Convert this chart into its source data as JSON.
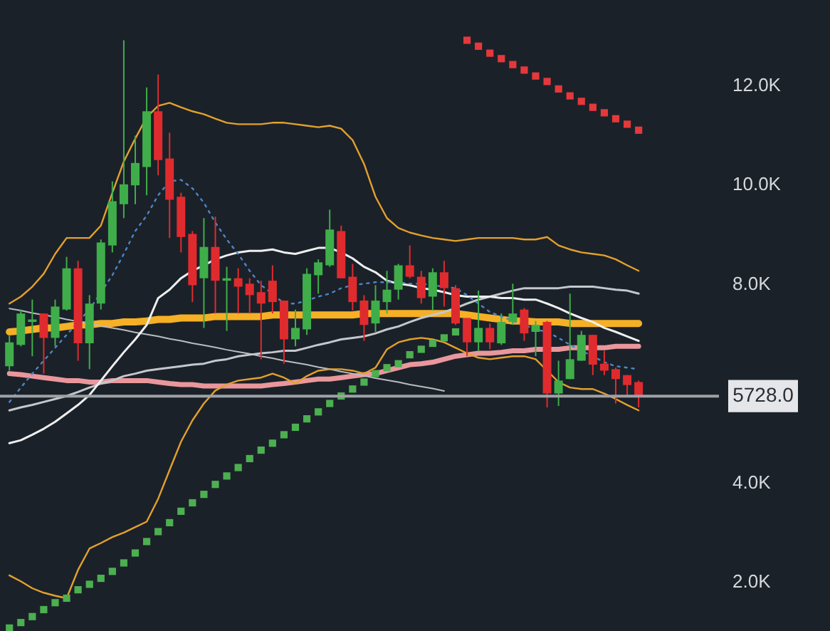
{
  "chart_data": {
    "type": "candlestick",
    "categories": [
      null,
      null,
      null,
      null,
      null,
      null,
      null,
      null,
      null,
      null,
      null,
      null,
      null,
      null,
      null,
      null,
      null,
      null,
      null,
      null,
      null,
      null,
      null,
      null,
      null,
      null,
      null,
      null,
      null,
      null,
      null,
      null,
      null,
      null,
      null,
      null,
      null,
      null,
      null,
      null,
      null,
      null,
      null,
      null,
      null,
      null,
      null,
      null,
      null,
      null,
      null,
      null,
      null,
      null,
      null,
      null
    ],
    "ohlc": [
      [
        6330,
        6960,
        6240,
        6810
      ],
      [
        6760,
        7470,
        6730,
        7390
      ],
      [
        7220,
        7670,
        6530,
        7270
      ],
      [
        7390,
        7390,
        6180,
        6900
      ],
      [
        6900,
        7670,
        6730,
        7530
      ],
      [
        7470,
        8530,
        7450,
        8300
      ],
      [
        8300,
        8450,
        6440,
        6790
      ],
      [
        6790,
        7760,
        6270,
        7590
      ],
      [
        7590,
        8880,
        7470,
        8820
      ],
      [
        8760,
        10050,
        8620,
        9650
      ],
      [
        9590,
        12890,
        9310,
        9990
      ],
      [
        9970,
        10970,
        9590,
        10420
      ],
      [
        10340,
        11940,
        9770,
        11460
      ],
      [
        11460,
        12200,
        10170,
        10480
      ],
      [
        10510,
        11030,
        8910,
        9680
      ],
      [
        9740,
        9820,
        8620,
        8930
      ],
      [
        8990,
        9050,
        7620,
        7960
      ],
      [
        8100,
        9310,
        7100,
        8730
      ],
      [
        8730,
        9340,
        7390,
        8050
      ],
      [
        8050,
        8330,
        7040,
        8100
      ],
      [
        8100,
        8300,
        7390,
        7930
      ],
      [
        7990,
        8100,
        7390,
        7760
      ],
      [
        7820,
        8050,
        6470,
        7590
      ],
      [
        8050,
        8360,
        7390,
        7620
      ],
      [
        7650,
        7650,
        6380,
        6870
      ],
      [
        6870,
        7470,
        6730,
        7100
      ],
      [
        7070,
        8300,
        6960,
        8190
      ],
      [
        8160,
        8480,
        7790,
        8420
      ],
      [
        8360,
        9480,
        8330,
        9080
      ],
      [
        9050,
        9160,
        8100,
        8100
      ],
      [
        8130,
        8390,
        7450,
        7620
      ],
      [
        7650,
        7760,
        6840,
        7160
      ],
      [
        7190,
        7960,
        7020,
        7650
      ],
      [
        7620,
        8250,
        7390,
        7870
      ],
      [
        7870,
        8390,
        7670,
        8360
      ],
      [
        8360,
        8760,
        8100,
        8130
      ],
      [
        8130,
        8250,
        7590,
        7700
      ],
      [
        7730,
        8300,
        7450,
        8220
      ],
      [
        8220,
        8450,
        7530,
        7900
      ],
      [
        7900,
        7960,
        7160,
        7190
      ],
      [
        7300,
        7300,
        6530,
        6810
      ],
      [
        6810,
        7850,
        6640,
        7100
      ],
      [
        7100,
        7190,
        6670,
        6810
      ],
      [
        6790,
        7390,
        6760,
        7220
      ],
      [
        7220,
        7990,
        7160,
        7390
      ],
      [
        7470,
        7500,
        6840,
        6990
      ],
      [
        7020,
        7240,
        6530,
        7160
      ],
      [
        7220,
        7240,
        5500,
        5780
      ],
      [
        5780,
        6440,
        5530,
        6040
      ],
      [
        6070,
        7790,
        6070,
        6470
      ],
      [
        6440,
        7040,
        6440,
        6960
      ],
      [
        6960,
        6960,
        6150,
        6360
      ],
      [
        6380,
        6640,
        6150,
        6240
      ],
      [
        6270,
        6300,
        5580,
        6070
      ],
      [
        6150,
        6150,
        5750,
        5950
      ],
      [
        6010,
        6040,
        5500,
        5728
      ]
    ],
    "colors": [
      "#3fae4a",
      "#3fae4a",
      "#3fae4a",
      "#e02b2e",
      "#3fae4a",
      "#3fae4a",
      "#e02b2e",
      "#3fae4a",
      "#3fae4a",
      "#3fae4a",
      "#3fae4a",
      "#3fae4a",
      "#3fae4a",
      "#e02b2e",
      "#e02b2e",
      "#e02b2e",
      "#e02b2e",
      "#3fae4a",
      "#e02b2e",
      "#3fae4a",
      "#e02b2e",
      "#e02b2e",
      "#e02b2e",
      "#e02b2e",
      "#e02b2e",
      "#3fae4a",
      "#3fae4a",
      "#3fae4a",
      "#3fae4a",
      "#e02b2e",
      "#e02b2e",
      "#e02b2e",
      "#3fae4a",
      "#3fae4a",
      "#3fae4a",
      "#e02b2e",
      "#e02b2e",
      "#3fae4a",
      "#e02b2e",
      "#e02b2e",
      "#e02b2e",
      "#3fae4a",
      "#e02b2e",
      "#3fae4a",
      "#3fae4a",
      "#e02b2e",
      "#3fae4a",
      "#e02b2e",
      "#3fae4a",
      "#3fae4a",
      "#3fae4a",
      "#e02b2e",
      "#e02b2e",
      "#e02b2e",
      "#e02b2e",
      "#e02b2e"
    ],
    "series": [
      {
        "type": "line",
        "color": "#f6b026",
        "values": [
          7020,
          7040,
          7070,
          7100,
          7100,
          7130,
          7160,
          7160,
          7190,
          7190,
          7220,
          7220,
          7240,
          7270,
          7270,
          7300,
          7300,
          7300,
          7330,
          7330,
          7330,
          7330,
          7330,
          7360,
          7360,
          7360,
          7360,
          7360,
          7360,
          7360,
          7360,
          7390,
          7390,
          7390,
          7390,
          7390,
          7390,
          7390,
          7390,
          7390,
          7360,
          7330,
          7300,
          7270,
          7240,
          7240,
          7220,
          7220,
          7220,
          7190,
          7190,
          7190,
          7190,
          7190,
          7190,
          7190
        ]
      },
      {
        "type": "line",
        "color": "#e9979c",
        "values": [
          6180,
          6160,
          6130,
          6100,
          6070,
          6040,
          6040,
          6010,
          6010,
          6040,
          6040,
          6040,
          6040,
          6010,
          5980,
          5960,
          5960,
          5930,
          5930,
          5930,
          5930,
          5930,
          5930,
          5960,
          5980,
          6010,
          6040,
          6070,
          6070,
          6100,
          6130,
          6160,
          6180,
          6240,
          6300,
          6360,
          6380,
          6410,
          6470,
          6530,
          6560,
          6590,
          6590,
          6610,
          6640,
          6640,
          6670,
          6670,
          6670,
          6700,
          6700,
          6700,
          6700,
          6730,
          6730,
          6730
        ]
      },
      {
        "type": "line",
        "color": "#b8bcc2",
        "values": [
          7490,
          7450,
          7400,
          7360,
          7320,
          7270,
          7230,
          7190,
          7140,
          7100,
          7060,
          7010,
          6970,
          6930,
          6880,
          6840,
          6790,
          6750,
          6710,
          6660,
          6620,
          6580,
          6530,
          6490,
          6440,
          6400,
          6360,
          6310,
          6270,
          6220,
          6180,
          6140,
          6090,
          6050,
          6010,
          5960,
          5920,
          5880,
          5830,
          null,
          null,
          null,
          null,
          null,
          null,
          null,
          null,
          null,
          null,
          null,
          null,
          null,
          null,
          null,
          null,
          null
        ]
      },
      {
        "type": "line",
        "color": "#c4c8cc",
        "values": [
          5440,
          5500,
          5550,
          5610,
          5670,
          5730,
          5810,
          5900,
          5980,
          6040,
          6130,
          6180,
          6240,
          6270,
          6300,
          6330,
          6360,
          6380,
          6440,
          6470,
          6530,
          6560,
          6590,
          6610,
          6640,
          6640,
          6700,
          6760,
          6810,
          6870,
          6900,
          6930,
          6990,
          7070,
          7130,
          7220,
          7300,
          7360,
          7420,
          7500,
          7590,
          7670,
          7730,
          7790,
          7850,
          7900,
          7900,
          7900,
          7900,
          7930,
          7930,
          7930,
          7900,
          7870,
          7850,
          7790
        ]
      },
      {
        "type": "line",
        "color": "#eeeeee",
        "values": [
          4780,
          4840,
          4950,
          5070,
          5210,
          5380,
          5550,
          5750,
          6040,
          6330,
          6610,
          6870,
          7160,
          7700,
          7870,
          8100,
          8250,
          8360,
          8480,
          8560,
          8620,
          8650,
          8650,
          8680,
          8620,
          8590,
          8650,
          8710,
          8710,
          8620,
          8500,
          8330,
          8220,
          8050,
          7990,
          7960,
          7900,
          7870,
          7820,
          7760,
          7730,
          7730,
          7730,
          7700,
          7700,
          7670,
          7670,
          7590,
          7500,
          7390,
          7300,
          7220,
          7100,
          7020,
          6930,
          6840
        ]
      },
      {
        "type": "line",
        "color": "#e3a12c",
        "values": [
          7590,
          7730,
          7930,
          8190,
          8590,
          8910,
          8910,
          8910,
          9160,
          9820,
          10450,
          10910,
          11340,
          11570,
          11630,
          11540,
          11460,
          11400,
          11310,
          11230,
          11200,
          11200,
          11200,
          11230,
          11230,
          11200,
          11170,
          11140,
          11170,
          11110,
          10880,
          10400,
          9740,
          9310,
          9110,
          9020,
          8960,
          8910,
          8880,
          8850,
          8880,
          8910,
          8910,
          8910,
          8910,
          8880,
          8880,
          8930,
          8760,
          8680,
          8620,
          8590,
          8560,
          8480,
          8360,
          8250
        ]
      },
      {
        "type": "line",
        "color": "#e3a12c",
        "values": [
          2120,
          2000,
          1860,
          1770,
          1710,
          1660,
          2230,
          2660,
          2770,
          2890,
          2980,
          3090,
          3200,
          3660,
          4240,
          4810,
          5240,
          5580,
          5840,
          5960,
          6040,
          6070,
          6100,
          6180,
          6100,
          5980,
          6130,
          6240,
          6270,
          6270,
          6240,
          6180,
          6300,
          6670,
          6810,
          6870,
          6900,
          6870,
          6810,
          6700,
          6590,
          6500,
          6470,
          6500,
          6530,
          6530,
          6470,
          6240,
          6010,
          5900,
          5870,
          5870,
          5780,
          5670,
          5550,
          5440
        ]
      },
      {
        "type": "line",
        "color": "#4d86c6",
        "line_style": "dotted",
        "values": [
          5610,
          5900,
          6180,
          6440,
          6700,
          6960,
          7220,
          7470,
          null,
          8160,
          8590,
          9050,
          9360,
          9770,
          10050,
          10080,
          9910,
          9620,
          9220,
          8880,
          8590,
          8250,
          7960,
          7790,
          7590,
          7590,
          7650,
          7730,
          7790,
          7900,
          7960,
          7990,
          8020,
          8020,
          8020,
          7990,
          7990,
          7960,
          7930,
          7900,
          7760,
          7590,
          7420,
          7330,
          7240,
          7160,
          7070,
          7020,
          6900,
          6760,
          6640,
          6530,
          6410,
          6330,
          6300,
          6270
        ]
      },
      {
        "type": "scatter",
        "marker": "square",
        "color": "#4caf50",
        "values": [
          1060,
          1170,
          1290,
          1430,
          1570,
          1660,
          1830,
          1940,
          2060,
          2200,
          2370,
          2570,
          2800,
          3000,
          3180,
          3410,
          3580,
          3750,
          3950,
          4120,
          4290,
          4470,
          4640,
          4780,
          4950,
          5100,
          5270,
          5410,
          5580,
          5730,
          5870,
          6010,
          6180,
          6300,
          6380,
          6560,
          6670,
          6790,
          6900,
          7020,
          null,
          null,
          null,
          null,
          null,
          null,
          null,
          null,
          null,
          null,
          null,
          null,
          null,
          null,
          null,
          null
        ]
      },
      {
        "type": "scatter",
        "marker": "square",
        "color": "#e5383b",
        "values": [
          null,
          null,
          null,
          null,
          null,
          null,
          null,
          null,
          null,
          null,
          null,
          null,
          null,
          null,
          null,
          null,
          null,
          null,
          null,
          null,
          null,
          null,
          null,
          null,
          null,
          null,
          null,
          null,
          null,
          null,
          null,
          null,
          null,
          null,
          null,
          null,
          null,
          null,
          null,
          null,
          12890,
          12770,
          12630,
          12520,
          12400,
          12290,
          12170,
          12060,
          11910,
          11770,
          11660,
          11540,
          11430,
          11310,
          11200,
          11080
        ]
      }
    ],
    "ylim": [
      1000,
      13700
    ],
    "yticks": [
      {
        "value": 2000,
        "label": "2.0K"
      },
      {
        "value": 4000,
        "label": "4.0K"
      },
      {
        "value": 8000,
        "label": "8.0K"
      },
      {
        "value": 10000,
        "label": "10.0K"
      },
      {
        "value": 12000,
        "label": "12.0K"
      }
    ],
    "tick_labels": "y",
    "ref_lines": [
      {
        "axis": "y",
        "value": 5728,
        "label": "5728.0",
        "color": "#9ea1a6"
      }
    ]
  }
}
